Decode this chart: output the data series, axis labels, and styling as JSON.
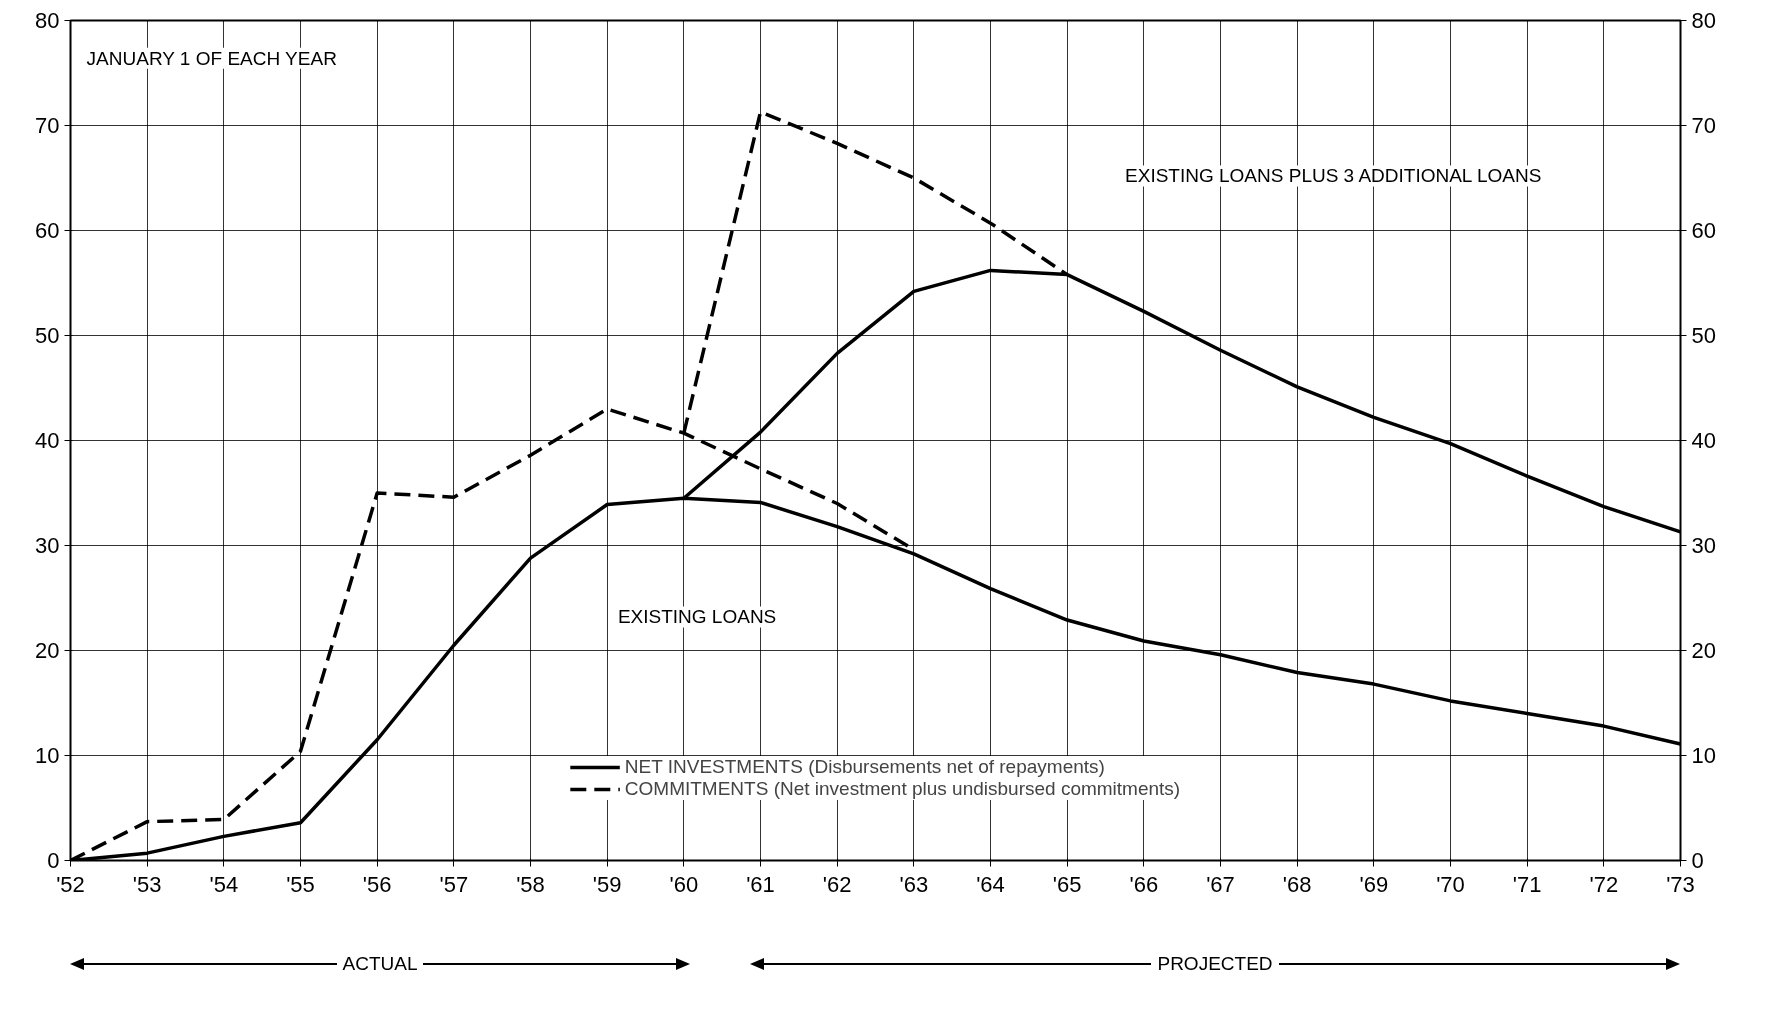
{
  "chart_data": {
    "type": "line",
    "x": [
      1952,
      1953,
      1954,
      1955,
      1956,
      1957,
      1958,
      1959,
      1960,
      1961,
      1962,
      1963,
      1964,
      1965,
      1966,
      1967,
      1968,
      1969,
      1970,
      1971,
      1972,
      1973
    ],
    "series": [
      {
        "name": "NET INVESTMENTS (Disbursements net of repayments)",
        "color": "#000000",
        "line_style": "solid",
        "values": [
          0,
          0.7,
          2.3,
          3.6,
          11.5,
          20.5,
          28.8,
          33.9,
          34.5,
          34.1,
          31.8,
          29.2,
          25.9,
          22.9,
          20.9,
          19.6,
          17.9,
          16.8,
          15.2,
          14.0,
          12.8,
          11.1
        ]
      },
      {
        "name": "COMMITMENTS (Net investment plus undisbursed commitments)",
        "color": "#000000",
        "line_style": "dashed",
        "x": [
          1952,
          1953,
          1954,
          1955,
          1956,
          1957,
          1958,
          1959,
          1960,
          1961,
          1962,
          1963
        ],
        "values": [
          0,
          3.7,
          3.9,
          10.4,
          35.0,
          34.6,
          38.6,
          43.0,
          40.7,
          37.3,
          34.0,
          29.6
        ]
      },
      {
        "color": "#000000",
        "line_style": "solid",
        "x": [
          1960,
          1961,
          1962,
          1963,
          1964,
          1965,
          1966,
          1967,
          1968,
          1969,
          1970,
          1971,
          1972,
          1973
        ],
        "values": [
          34.5,
          40.8,
          48.3,
          54.2,
          56.2,
          55.8,
          52.3,
          48.6,
          45.1,
          42.2,
          39.7,
          36.6,
          33.7,
          31.3
        ]
      },
      {
        "color": "#000000",
        "line_style": "dashed",
        "x": [
          1960,
          1961,
          1962,
          1963,
          1964,
          1965
        ],
        "values": [
          40.7,
          71.3,
          68.3,
          65.0,
          60.7,
          55.8
        ]
      }
    ],
    "xlim": [
      1952,
      1973
    ],
    "ylim": [
      0,
      80
    ],
    "y2lim": [
      0,
      80
    ],
    "xticks": [
      {
        "value": 1952,
        "label": "'52"
      },
      {
        "value": 1953,
        "label": "'53"
      },
      {
        "value": 1954,
        "label": "'54"
      },
      {
        "value": 1955,
        "label": "'55"
      },
      {
        "value": 1956,
        "label": "'56"
      },
      {
        "value": 1957,
        "label": "'57"
      },
      {
        "value": 1958,
        "label": "'58"
      },
      {
        "value": 1959,
        "label": "'59"
      },
      {
        "value": 1960,
        "label": "'60"
      },
      {
        "value": 1961,
        "label": "'61"
      },
      {
        "value": 1962,
        "label": "'62"
      },
      {
        "value": 1963,
        "label": "'63"
      },
      {
        "value": 1964,
        "label": "'64"
      },
      {
        "value": 1965,
        "label": "'65"
      },
      {
        "value": 1966,
        "label": "'66"
      },
      {
        "value": 1967,
        "label": "'67"
      },
      {
        "value": 1968,
        "label": "'68"
      },
      {
        "value": 1969,
        "label": "'69"
      },
      {
        "value": 1970,
        "label": "'70"
      },
      {
        "value": 1971,
        "label": "'71"
      },
      {
        "value": 1972,
        "label": "'72"
      },
      {
        "value": 1973,
        "label": "'73"
      }
    ],
    "yticks": [
      0,
      10,
      20,
      30,
      40,
      50,
      60,
      70,
      80
    ],
    "y2ticks": [
      0,
      10,
      20,
      30,
      40,
      50,
      60,
      70,
      80
    ],
    "grid": true,
    "legend": "bottom",
    "annotations": [
      "JANUARY 1 OF EACH YEAR",
      "EXISTING LOANS",
      "EXISTING LOANS PLUS 3 ADDITIONAL LOANS",
      "ACTUAL",
      "PROJECTED"
    ]
  }
}
